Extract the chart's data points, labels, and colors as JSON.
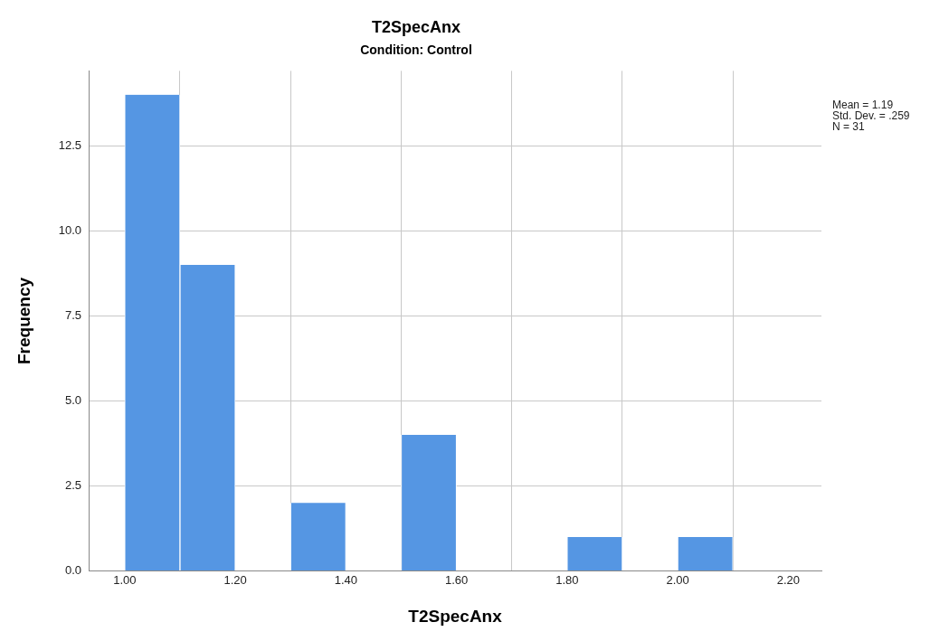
{
  "chart_data": {
    "type": "histogram",
    "title": "T2SpecAnx",
    "subtitle": "Condition: Control",
    "xlabel": "T2SpecAnx",
    "ylabel": "Frequency",
    "bins": [
      1.0,
      1.1,
      1.2,
      1.3,
      1.4,
      1.5,
      1.6,
      1.7,
      1.8,
      1.9,
      2.0,
      2.1
    ],
    "values": [
      14,
      9,
      0,
      2,
      0,
      4,
      0,
      0,
      1,
      0,
      1
    ],
    "color": "#5596e3",
    "xlim": [
      0.935,
      2.26
    ],
    "xticks": [
      {
        "value": 1.0,
        "label": "1.00"
      },
      {
        "value": 1.2,
        "label": "1.20"
      },
      {
        "value": 1.4,
        "label": "1.40"
      },
      {
        "value": 1.6,
        "label": "1.60"
      },
      {
        "value": 1.8,
        "label": "1.80"
      },
      {
        "value": 2.0,
        "label": "2.00"
      },
      {
        "value": 2.2,
        "label": "2.20"
      }
    ],
    "ylim": [
      0,
      14.7
    ],
    "yticks": [
      {
        "value": 0,
        "label": "0.0"
      },
      {
        "value": 2.5,
        "label": "2.5"
      },
      {
        "value": 5,
        "label": "5.0"
      },
      {
        "value": 7.5,
        "label": "7.5"
      },
      {
        "value": 10,
        "label": "10.0"
      },
      {
        "value": 12.5,
        "label": "12.5"
      }
    ],
    "grid": true,
    "annotations": [
      "Mean = 1.19",
      "Std. Dev. = .259",
      "N = 31"
    ]
  }
}
